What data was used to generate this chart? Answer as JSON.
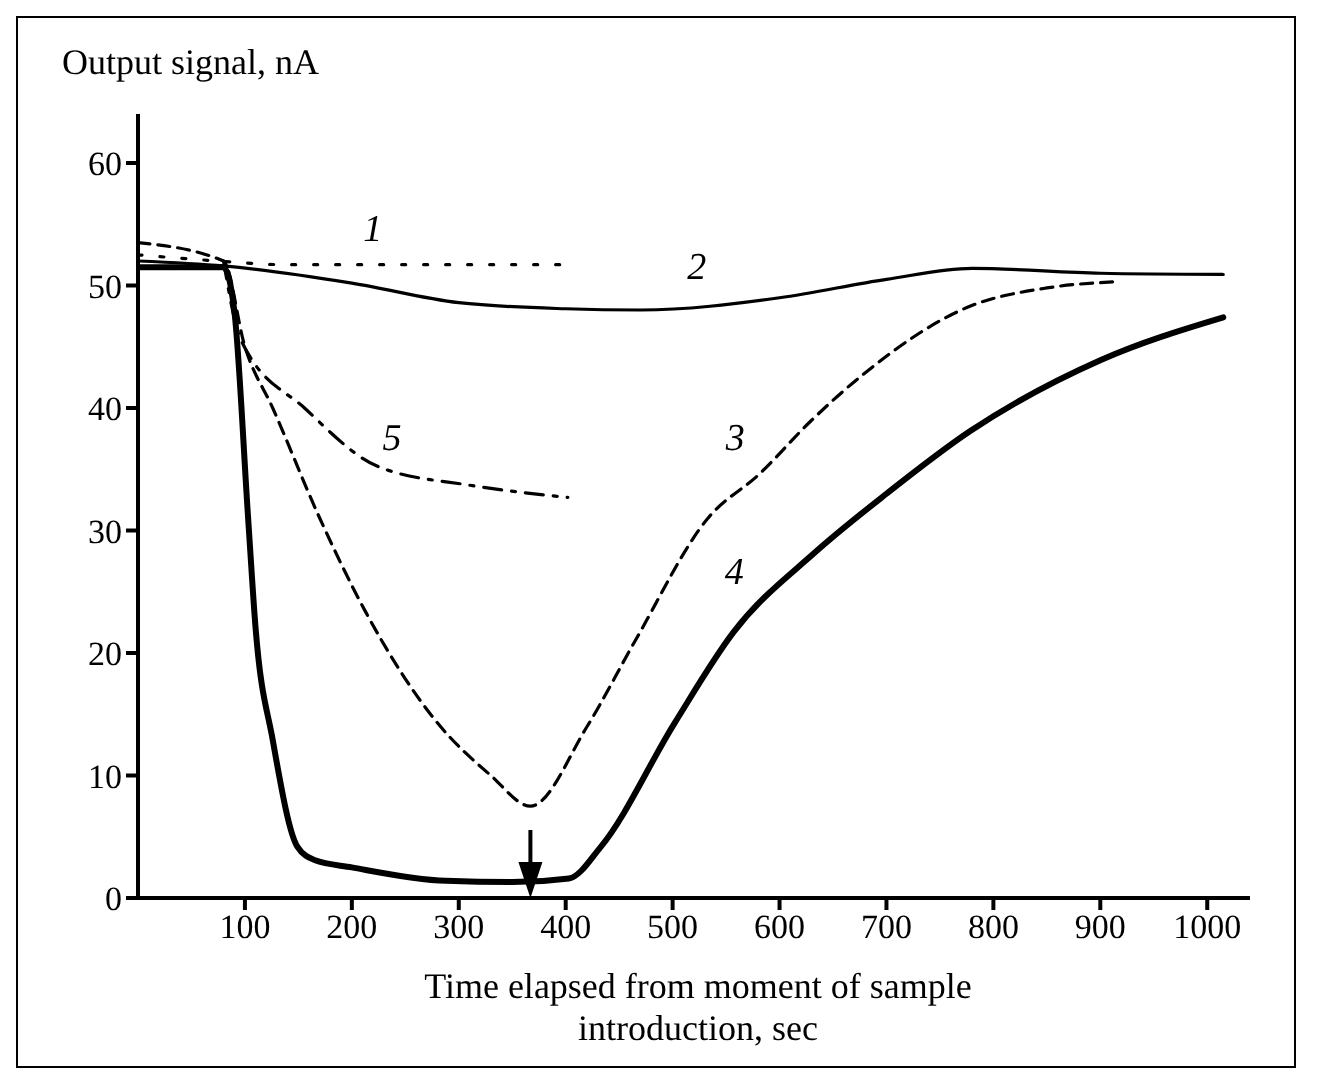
{
  "chart_data": {
    "type": "line",
    "ylabel": "Output signal, nA",
    "xlabel": "Time elapsed from moment of sample introduction, sec",
    "xlim": [
      0,
      1040
    ],
    "ylim": [
      0,
      64
    ],
    "xticks": [
      100,
      200,
      300,
      400,
      500,
      600,
      700,
      800,
      900,
      1000
    ],
    "yticks": [
      0,
      10,
      20,
      30,
      40,
      50,
      60
    ],
    "grid": false,
    "marker": "none",
    "series": [
      {
        "color": "#000000",
        "line_style": "dotted",
        "x": [
          0,
          75,
          137,
          188,
          242,
          295,
          347,
          400
        ],
        "values": [
          52.5,
          52,
          51.7,
          51.7,
          51.7,
          51.7,
          51.7,
          51.7
        ]
      },
      {
        "color": "#000000",
        "line_style": "solid",
        "x": [
          0,
          80,
          200,
          300,
          400,
          470,
          600,
          700,
          780,
          900,
          1015
        ],
        "values": [
          52,
          51.6,
          50.2,
          48.6,
          48.1,
          48,
          49,
          50.5,
          51.4,
          51,
          50.9
        ]
      },
      {
        "color": "#000000",
        "line_style": "dashed",
        "x": [
          0,
          80,
          100,
          126,
          170,
          212,
          280,
          330,
          367,
          420,
          465,
          533,
          581,
          630,
          679,
          778,
          850,
          913
        ],
        "values": [
          53.5,
          52,
          45,
          40,
          31,
          23.5,
          14.3,
          10,
          7.5,
          14,
          21,
          31,
          34.6,
          39,
          42.8,
          48.3,
          49.8,
          50.3
        ]
      },
      {
        "color": "#000000",
        "line_style": "solid",
        "x": [
          0,
          80,
          90,
          103,
          110,
          126,
          149,
          165,
          200,
          288,
          350,
          403,
          433,
          502,
          557,
          633,
          700,
          778,
          900,
          1015
        ],
        "values": [
          51.5,
          51.5,
          48,
          31,
          22,
          12.9,
          4.2,
          3.1,
          2.5,
          1.4,
          1.3,
          1.6,
          4.2,
          14.3,
          21.7,
          28.2,
          33,
          38.1,
          43.9,
          47.4
        ]
      },
      {
        "color": "#000000",
        "line_style": "dashdot",
        "x": [
          80,
          96,
          157,
          225,
          310,
          402
        ],
        "values": [
          52,
          45.6,
          39.9,
          35.2,
          33.7,
          32.7
        ]
      }
    ],
    "annotations": [
      {
        "text": "1",
        "x": 242,
        "y": 51.7
      },
      {
        "text": "2",
        "x": 545,
        "y": 48.6
      },
      {
        "text": "3",
        "x": 581,
        "y": 34.6
      },
      {
        "text": "4",
        "x": 580,
        "y": 23.7
      },
      {
        "text": "5",
        "x": 260,
        "y": 34.6
      }
    ]
  }
}
